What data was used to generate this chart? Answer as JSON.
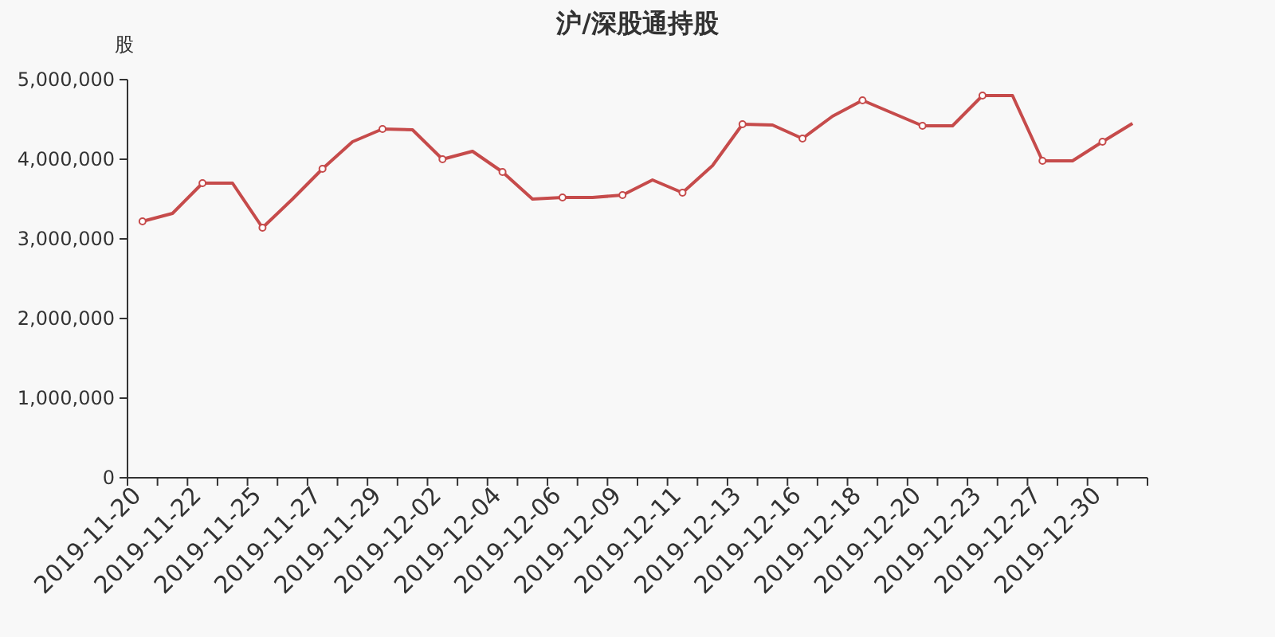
{
  "chart_data": {
    "type": "line",
    "title": "沪/深股通持股",
    "ylabel": "股",
    "categories": [
      "2019-11-20",
      null,
      "2019-11-22",
      null,
      "2019-11-25",
      null,
      "2019-11-27",
      null,
      "2019-11-29",
      null,
      "2019-12-02",
      null,
      "2019-12-04",
      null,
      "2019-12-06",
      null,
      "2019-12-09",
      null,
      "2019-12-11",
      null,
      "2019-12-13",
      null,
      "2019-12-16",
      null,
      "2019-12-18",
      null,
      "2019-12-20",
      null,
      "2019-12-23",
      null,
      "2019-12-27",
      null,
      "2019-12-30",
      null
    ],
    "series": [
      {
        "color": "#c64b4b",
        "values": [
          3220000,
          3320000,
          3700000,
          3700000,
          3140000,
          3500000,
          3880000,
          4220000,
          4380000,
          4370000,
          4000000,
          4100000,
          3840000,
          3500000,
          3520000,
          3520000,
          3550000,
          3740000,
          3580000,
          3920000,
          4440000,
          4430000,
          4260000,
          4540000,
          4740000,
          4580000,
          4420000,
          4420000,
          4800000,
          4800000,
          3980000,
          3980000,
          4220000,
          4450000
        ]
      }
    ],
    "ylim": [
      0,
      5000000
    ],
    "yticks": [
      0,
      {
        "value": 1000000,
        "label": "1,000,000"
      },
      {
        "value": 2000000,
        "label": "2,000,000"
      },
      {
        "value": 3000000,
        "label": "3,000,000"
      },
      {
        "value": 4000000,
        "label": "4,000,000"
      },
      {
        "value": 5000000,
        "label": "5,000,000"
      }
    ],
    "grid": false,
    "marker": "circle",
    "line_style": "solid"
  }
}
